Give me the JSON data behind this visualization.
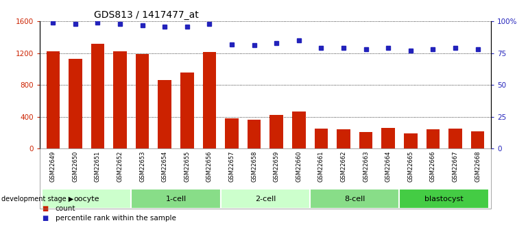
{
  "title": "GDS813 / 1417477_at",
  "samples": [
    "GSM22649",
    "GSM22650",
    "GSM22651",
    "GSM22652",
    "GSM22653",
    "GSM22654",
    "GSM22655",
    "GSM22656",
    "GSM22657",
    "GSM22658",
    "GSM22659",
    "GSM22660",
    "GSM22661",
    "GSM22662",
    "GSM22663",
    "GSM22664",
    "GSM22665",
    "GSM22666",
    "GSM22667",
    "GSM22668"
  ],
  "counts": [
    1220,
    1130,
    1320,
    1220,
    1190,
    860,
    960,
    1210,
    380,
    360,
    420,
    470,
    250,
    240,
    210,
    260,
    195,
    240,
    250,
    215
  ],
  "percentiles": [
    99,
    98,
    99,
    98,
    97,
    96,
    96,
    98,
    82,
    81,
    83,
    85,
    79,
    79,
    78,
    79,
    77,
    78,
    79,
    78
  ],
  "groups": [
    {
      "label": "oocyte",
      "start": 0,
      "end": 4,
      "color": "#ccffcc"
    },
    {
      "label": "1-cell",
      "start": 4,
      "end": 8,
      "color": "#88dd88"
    },
    {
      "label": "2-cell",
      "start": 8,
      "end": 12,
      "color": "#ccffcc"
    },
    {
      "label": "8-cell",
      "start": 12,
      "end": 16,
      "color": "#88dd88"
    },
    {
      "label": "blastocyst",
      "start": 16,
      "end": 20,
      "color": "#44cc44"
    }
  ],
  "bar_color": "#cc2200",
  "dot_color": "#2222bb",
  "ylim_left": [
    0,
    1600
  ],
  "ylim_right": [
    0,
    100
  ],
  "yticks_left": [
    0,
    400,
    800,
    1200,
    1600
  ],
  "yticks_right": [
    0,
    25,
    50,
    75,
    100
  ],
  "yticklabels_right": [
    "0",
    "25",
    "50",
    "75",
    "100%"
  ],
  "xlabel_stage": "development stage",
  "legend_count": "count",
  "legend_pct": "percentile rank within the sample",
  "sample_bg_color": "#d8d8d8",
  "title_fontsize": 10,
  "tick_fontsize": 7.5,
  "sample_fontsize": 6,
  "stage_fontsize": 8,
  "legend_fontsize": 7.5
}
